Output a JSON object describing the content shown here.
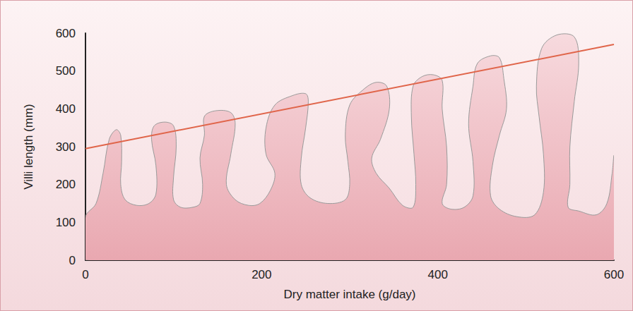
{
  "chart_data": {
    "type": "line",
    "x_label": "Dry matter intake (g/day)",
    "y_label": "Villi length (mm)",
    "xlim": [
      0,
      600
    ],
    "xticks": [
      0,
      200,
      400,
      600
    ],
    "ylim": [
      0,
      600
    ],
    "yticks": [
      0,
      100,
      200,
      300,
      400,
      500,
      600
    ],
    "grid": false,
    "series": [
      {
        "type": "area",
        "color": "#e8a4ad",
        "points": [
          [
            0,
            0
          ],
          [
            0,
            115
          ],
          [
            12,
            150
          ],
          [
            20,
            230
          ],
          [
            27,
            320
          ],
          [
            35,
            345
          ],
          [
            40,
            330
          ],
          [
            41,
            260
          ],
          [
            40,
            200
          ],
          [
            45,
            160
          ],
          [
            58,
            145
          ],
          [
            72,
            150
          ],
          [
            80,
            175
          ],
          [
            80,
            250
          ],
          [
            75,
            320
          ],
          [
            78,
            355
          ],
          [
            90,
            365
          ],
          [
            100,
            355
          ],
          [
            103,
            300
          ],
          [
            100,
            220
          ],
          [
            100,
            160
          ],
          [
            108,
            140
          ],
          [
            122,
            140
          ],
          [
            130,
            150
          ],
          [
            133,
            200
          ],
          [
            130,
            270
          ],
          [
            135,
            330
          ],
          [
            135,
            380
          ],
          [
            148,
            395
          ],
          [
            165,
            390
          ],
          [
            170,
            360
          ],
          [
            165,
            280
          ],
          [
            160,
            200
          ],
          [
            170,
            160
          ],
          [
            185,
            145
          ],
          [
            198,
            150
          ],
          [
            210,
            185
          ],
          [
            215,
            230
          ],
          [
            205,
            280
          ],
          [
            205,
            350
          ],
          [
            215,
            410
          ],
          [
            235,
            435
          ],
          [
            250,
            440
          ],
          [
            253,
            420
          ],
          [
            250,
            350
          ],
          [
            245,
            270
          ],
          [
            245,
            200
          ],
          [
            255,
            165
          ],
          [
            275,
            150
          ],
          [
            295,
            160
          ],
          [
            300,
            200
          ],
          [
            298,
            260
          ],
          [
            295,
            330
          ],
          [
            300,
            410
          ],
          [
            315,
            450
          ],
          [
            330,
            470
          ],
          [
            342,
            460
          ],
          [
            345,
            400
          ],
          [
            335,
            320
          ],
          [
            325,
            270
          ],
          [
            330,
            230
          ],
          [
            345,
            190
          ],
          [
            360,
            145
          ],
          [
            372,
            140
          ],
          [
            375,
            200
          ],
          [
            373,
            280
          ],
          [
            370,
            380
          ],
          [
            372,
            460
          ],
          [
            382,
            485
          ],
          [
            395,
            490
          ],
          [
            405,
            475
          ],
          [
            405,
            400
          ],
          [
            410,
            300
          ],
          [
            410,
            200
          ],
          [
            405,
            150
          ],
          [
            415,
            135
          ],
          [
            430,
            140
          ],
          [
            440,
            170
          ],
          [
            440,
            260
          ],
          [
            435,
            360
          ],
          [
            440,
            460
          ],
          [
            445,
            520
          ],
          [
            460,
            540
          ],
          [
            470,
            535
          ],
          [
            475,
            480
          ],
          [
            478,
            400
          ],
          [
            470,
            330
          ],
          [
            462,
            250
          ],
          [
            460,
            170
          ],
          [
            470,
            135
          ],
          [
            490,
            115
          ],
          [
            510,
            120
          ],
          [
            520,
            180
          ],
          [
            520,
            280
          ],
          [
            515,
            380
          ],
          [
            512,
            460
          ],
          [
            518,
            560
          ],
          [
            535,
            595
          ],
          [
            555,
            590
          ],
          [
            560,
            520
          ],
          [
            555,
            420
          ],
          [
            550,
            300
          ],
          [
            550,
            200
          ],
          [
            548,
            140
          ],
          [
            560,
            130
          ],
          [
            580,
            120
          ],
          [
            592,
            150
          ],
          [
            598,
            230
          ],
          [
            600,
            275
          ],
          [
            600,
            0
          ]
        ]
      },
      {
        "type": "line",
        "color": "#e0654a",
        "x": [
          0,
          600
        ],
        "values": [
          295,
          570
        ]
      }
    ]
  }
}
